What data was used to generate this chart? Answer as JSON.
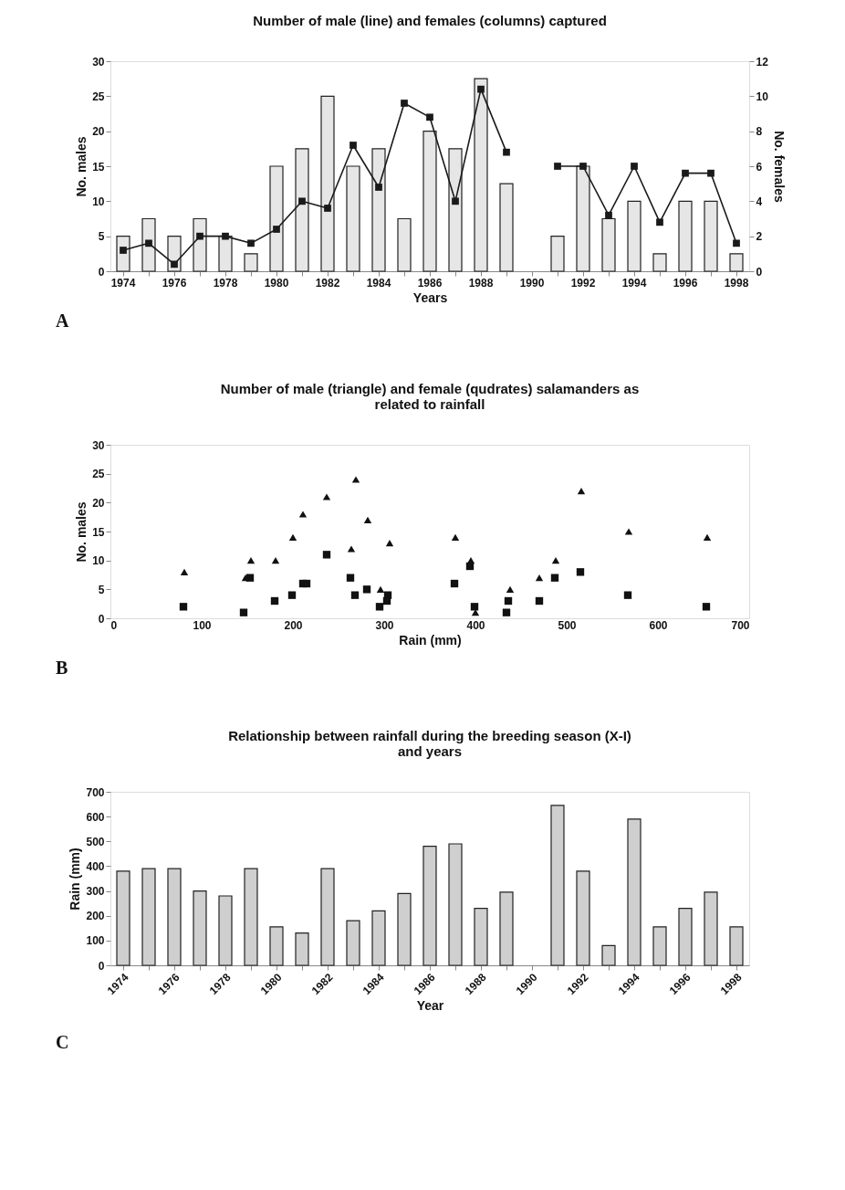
{
  "chart_data": [
    {
      "type": "bar",
      "title": "Number of male (line) and females (columns) captured",
      "xlabel": "Years",
      "ylabel": "No. males",
      "y2label": "No. females",
      "annotations": [
        "A"
      ],
      "categories": [
        "1974",
        null,
        "1976",
        null,
        "1978",
        null,
        "1980",
        null,
        "1982",
        null,
        "1984",
        null,
        "1986",
        null,
        "1988",
        null,
        "1990",
        null,
        "1992",
        null,
        "1994",
        null,
        "1996",
        null,
        "1998"
      ],
      "ylim": [
        0,
        30
      ],
      "yticks": [
        0,
        5,
        10,
        15,
        20,
        25,
        30
      ],
      "y2lim": [
        0,
        12
      ],
      "y2ticks": [
        0,
        2,
        4,
        6,
        8,
        10,
        12
      ],
      "series": [
        {
          "type": "bar",
          "axis": "y2",
          "color": "#e6e6e6",
          "values": [
            2,
            3,
            2,
            3,
            2,
            1,
            6,
            7,
            10,
            6,
            7,
            3,
            8,
            7,
            11,
            5,
            null,
            2,
            6,
            3,
            4,
            1,
            4,
            4,
            1
          ]
        },
        {
          "type": "line",
          "color": "#1a1a1a",
          "marker": "square",
          "values": [
            3,
            4,
            1,
            5,
            5,
            4,
            6,
            10,
            9,
            18,
            12,
            24,
            22,
            10,
            26,
            17,
            null,
            15,
            15,
            8,
            15,
            7,
            14,
            14,
            4
          ]
        }
      ]
    },
    {
      "type": "scatter",
      "title": "Number of male (triangle) and female (qudrates) salamanders as related to rainfall",
      "xlabel": "Rain (mm)",
      "ylabel": "No. males",
      "annotations": [
        "B"
      ],
      "xlim": [
        0,
        700
      ],
      "xticks": [
        0,
        100,
        200,
        300,
        400,
        500,
        600,
        700
      ],
      "ylim": [
        0,
        30
      ],
      "yticks": [
        0,
        5,
        10,
        15,
        20,
        25,
        30
      ],
      "series": [
        {
          "color": "#111111",
          "marker": "triangle",
          "x": [
            81,
            148,
            154,
            181,
            200,
            211,
            237,
            264,
            269,
            282,
            296,
            306,
            378,
            395,
            400,
            438,
            470,
            488,
            516,
            568,
            654
          ],
          "values": [
            8,
            7,
            10,
            10,
            14,
            18,
            21,
            12,
            24,
            17,
            5,
            13,
            14,
            10,
            1,
            5,
            7,
            10,
            22,
            15,
            14
          ]
        },
        {
          "color": "#111111",
          "marker": "square",
          "x": [
            80,
            146,
            153,
            180,
            199,
            211,
            215,
            237,
            263,
            268,
            281,
            295,
            303,
            304,
            377,
            394,
            399,
            434,
            436,
            470,
            487,
            515,
            567,
            653
          ],
          "values": [
            2,
            1,
            7,
            3,
            4,
            6,
            6,
            11,
            7,
            4,
            5,
            2,
            3,
            4,
            6,
            9,
            2,
            1,
            3,
            3,
            7,
            8,
            4,
            2
          ]
        }
      ]
    },
    {
      "type": "bar",
      "title": "Relationship between rainfall during the breeding season (X-I) and years",
      "xlabel": "Year",
      "ylabel": "Rain (mm)",
      "annotations": [
        "C"
      ],
      "categories": [
        "1974",
        null,
        "1976",
        null,
        "1978",
        null,
        "1980",
        null,
        "1982",
        null,
        "1984",
        null,
        "1986",
        null,
        "1988",
        null,
        "1990",
        null,
        "1992",
        null,
        "1994",
        null,
        "1996",
        null,
        "1998"
      ],
      "ylim": [
        0,
        700
      ],
      "yticks": [
        0,
        100,
        200,
        300,
        400,
        500,
        600,
        700
      ],
      "series": [
        {
          "color": "#cfcfcf",
          "values": [
            380,
            390,
            390,
            300,
            280,
            390,
            155,
            130,
            390,
            180,
            220,
            290,
            480,
            490,
            230,
            295,
            null,
            645,
            380,
            80,
            590,
            155,
            230,
            295,
            155
          ]
        }
      ]
    }
  ]
}
